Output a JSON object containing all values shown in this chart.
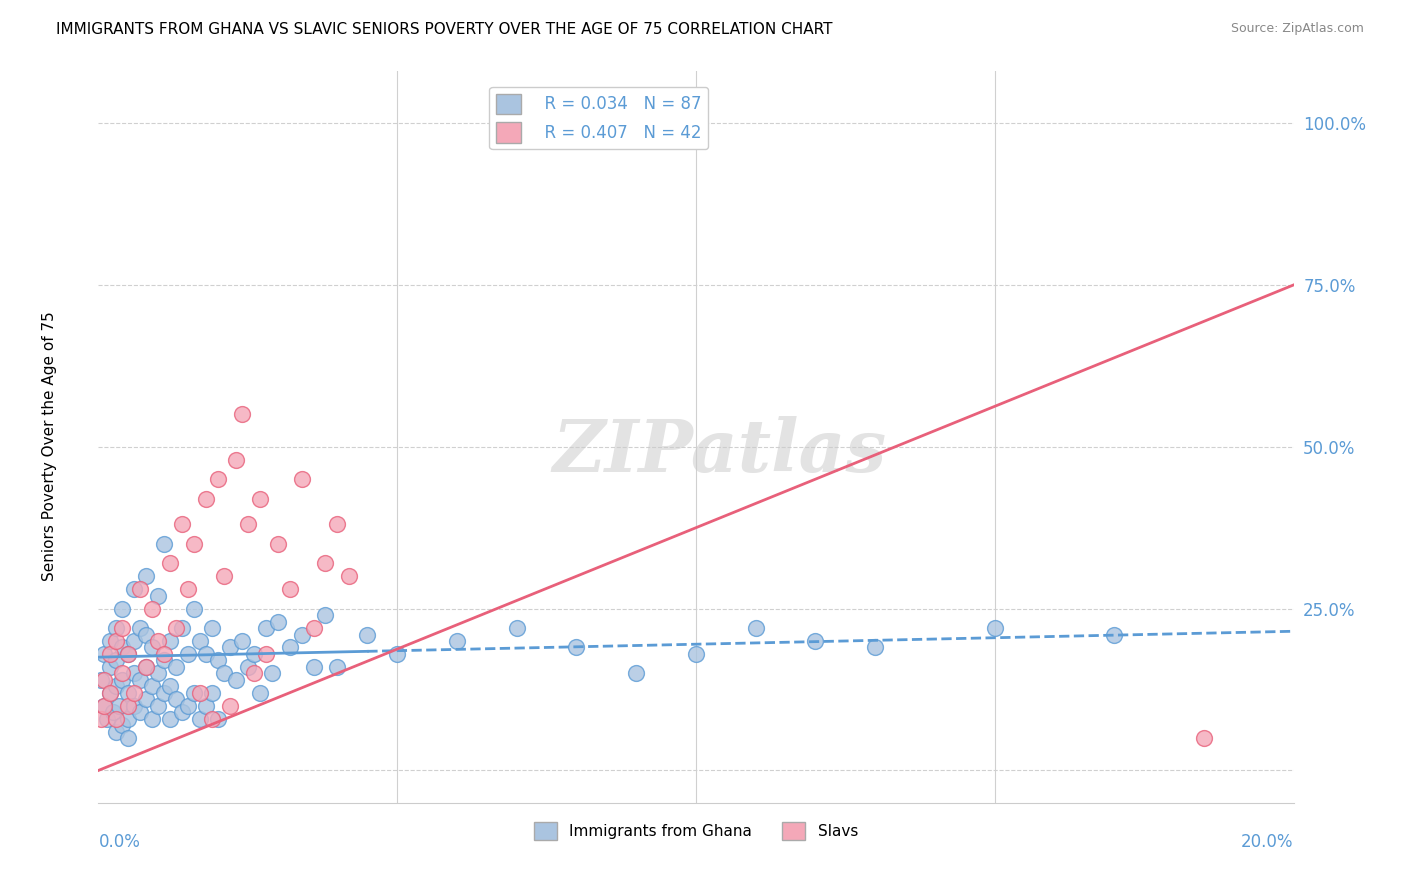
{
  "title": "IMMIGRANTS FROM GHANA VS SLAVIC SENIORS POVERTY OVER THE AGE OF 75 CORRELATION CHART",
  "source": "Source: ZipAtlas.com",
  "ylabel": "Seniors Poverty Over the Age of 75",
  "yticks": [
    0.0,
    0.25,
    0.5,
    0.75,
    1.0
  ],
  "ytick_labels": [
    "",
    "25.0%",
    "50.0%",
    "75.0%",
    "100.0%"
  ],
  "xlim": [
    0.0,
    0.2
  ],
  "ylim": [
    -0.05,
    1.08
  ],
  "ghana_R": 0.034,
  "ghana_N": 87,
  "slavs_R": 0.407,
  "slavs_N": 42,
  "ghana_color": "#aac4e0",
  "slavs_color": "#f4a8b8",
  "ghana_trend_color": "#5b9bd5",
  "slavs_trend_color": "#e8607a",
  "watermark": "ZIPatlas",
  "ghana_trend_x0": 0.0,
  "ghana_trend_y0": 0.175,
  "ghana_trend_x1": 0.2,
  "ghana_trend_y1": 0.215,
  "slavs_trend_x0": 0.0,
  "slavs_trend_y0": 0.0,
  "slavs_trend_x1": 0.2,
  "slavs_trend_y1": 0.75,
  "ghana_scatter_x": [
    0.0005,
    0.001,
    0.001,
    0.0015,
    0.002,
    0.002,
    0.002,
    0.0025,
    0.003,
    0.003,
    0.003,
    0.003,
    0.0035,
    0.004,
    0.004,
    0.004,
    0.004,
    0.005,
    0.005,
    0.005,
    0.005,
    0.006,
    0.006,
    0.006,
    0.006,
    0.007,
    0.007,
    0.007,
    0.008,
    0.008,
    0.008,
    0.008,
    0.009,
    0.009,
    0.009,
    0.01,
    0.01,
    0.01,
    0.011,
    0.011,
    0.011,
    0.012,
    0.012,
    0.012,
    0.013,
    0.013,
    0.014,
    0.014,
    0.015,
    0.015,
    0.016,
    0.016,
    0.017,
    0.017,
    0.018,
    0.018,
    0.019,
    0.019,
    0.02,
    0.02,
    0.021,
    0.022,
    0.023,
    0.024,
    0.025,
    0.026,
    0.027,
    0.028,
    0.029,
    0.03,
    0.032,
    0.034,
    0.036,
    0.038,
    0.04,
    0.045,
    0.05,
    0.06,
    0.07,
    0.08,
    0.09,
    0.1,
    0.11,
    0.12,
    0.13,
    0.15,
    0.17
  ],
  "ghana_scatter_y": [
    0.14,
    0.1,
    0.18,
    0.08,
    0.12,
    0.16,
    0.2,
    0.09,
    0.06,
    0.13,
    0.17,
    0.22,
    0.1,
    0.07,
    0.14,
    0.19,
    0.25,
    0.08,
    0.12,
    0.18,
    0.05,
    0.1,
    0.15,
    0.2,
    0.28,
    0.09,
    0.14,
    0.22,
    0.11,
    0.16,
    0.21,
    0.3,
    0.08,
    0.13,
    0.19,
    0.1,
    0.15,
    0.27,
    0.12,
    0.17,
    0.35,
    0.08,
    0.13,
    0.2,
    0.11,
    0.16,
    0.09,
    0.22,
    0.1,
    0.18,
    0.12,
    0.25,
    0.08,
    0.2,
    0.1,
    0.18,
    0.12,
    0.22,
    0.08,
    0.17,
    0.15,
    0.19,
    0.14,
    0.2,
    0.16,
    0.18,
    0.12,
    0.22,
    0.15,
    0.23,
    0.19,
    0.21,
    0.16,
    0.24,
    0.16,
    0.21,
    0.18,
    0.2,
    0.22,
    0.19,
    0.15,
    0.18,
    0.22,
    0.2,
    0.19,
    0.22,
    0.21
  ],
  "slavs_scatter_x": [
    0.0005,
    0.001,
    0.001,
    0.002,
    0.002,
    0.003,
    0.003,
    0.004,
    0.004,
    0.005,
    0.005,
    0.006,
    0.007,
    0.008,
    0.009,
    0.01,
    0.011,
    0.012,
    0.013,
    0.014,
    0.015,
    0.016,
    0.017,
    0.018,
    0.019,
    0.02,
    0.021,
    0.022,
    0.023,
    0.024,
    0.025,
    0.026,
    0.027,
    0.028,
    0.03,
    0.032,
    0.034,
    0.036,
    0.038,
    0.04,
    0.042,
    0.185
  ],
  "slavs_scatter_y": [
    0.08,
    0.1,
    0.14,
    0.12,
    0.18,
    0.08,
    0.2,
    0.15,
    0.22,
    0.1,
    0.18,
    0.12,
    0.28,
    0.16,
    0.25,
    0.2,
    0.18,
    0.32,
    0.22,
    0.38,
    0.28,
    0.35,
    0.12,
    0.42,
    0.08,
    0.45,
    0.3,
    0.1,
    0.48,
    0.55,
    0.38,
    0.15,
    0.42,
    0.18,
    0.35,
    0.28,
    0.45,
    0.22,
    0.32,
    0.38,
    0.3,
    0.05
  ]
}
